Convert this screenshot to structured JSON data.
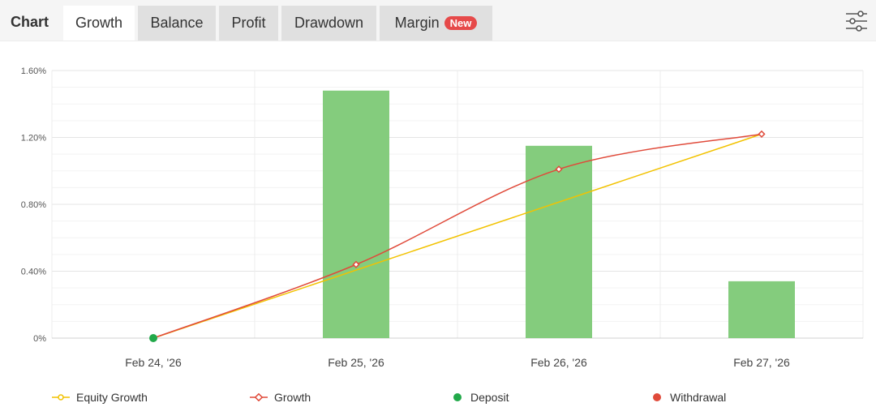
{
  "header": {
    "title": "Chart",
    "tabs": [
      {
        "label": "Growth",
        "active": true
      },
      {
        "label": "Balance",
        "active": false
      },
      {
        "label": "Profit",
        "active": false
      },
      {
        "label": "Drawdown",
        "active": false
      },
      {
        "label": "Margin",
        "active": false,
        "badge": "New"
      }
    ],
    "settings_icon": "sliders-icon"
  },
  "colors": {
    "bars": "#84cc7d",
    "equity_growth": "#f2c200",
    "growth": "#e04a3a",
    "deposit": "#22a94a",
    "withdrawal": "#e04a3a",
    "badge": "#e64a4a"
  },
  "chart_data": {
    "type": "bar",
    "categories": [
      "Feb 24, '26",
      "Feb 25, '26",
      "Feb 26, '26",
      "Feb 27, '26"
    ],
    "ylim": [
      0,
      1.6
    ],
    "yticks": [
      "0%",
      "0.40%",
      "0.80%",
      "1.20%",
      "1.60%"
    ],
    "bars": [
      null,
      1.48,
      1.15,
      0.34
    ],
    "series": [
      {
        "name": "Equity Growth",
        "type": "line",
        "values": [
          0,
          null,
          null,
          1.22
        ]
      },
      {
        "name": "Growth",
        "type": "line",
        "values": [
          0,
          0.44,
          1.01,
          1.22
        ]
      }
    ],
    "markers": [
      {
        "name": "Deposit",
        "x": "Feb 24, '26",
        "y": 0
      }
    ],
    "legend": [
      "Equity Growth",
      "Growth",
      "Deposit",
      "Withdrawal"
    ],
    "legend_position": "bottom",
    "grid": true
  }
}
